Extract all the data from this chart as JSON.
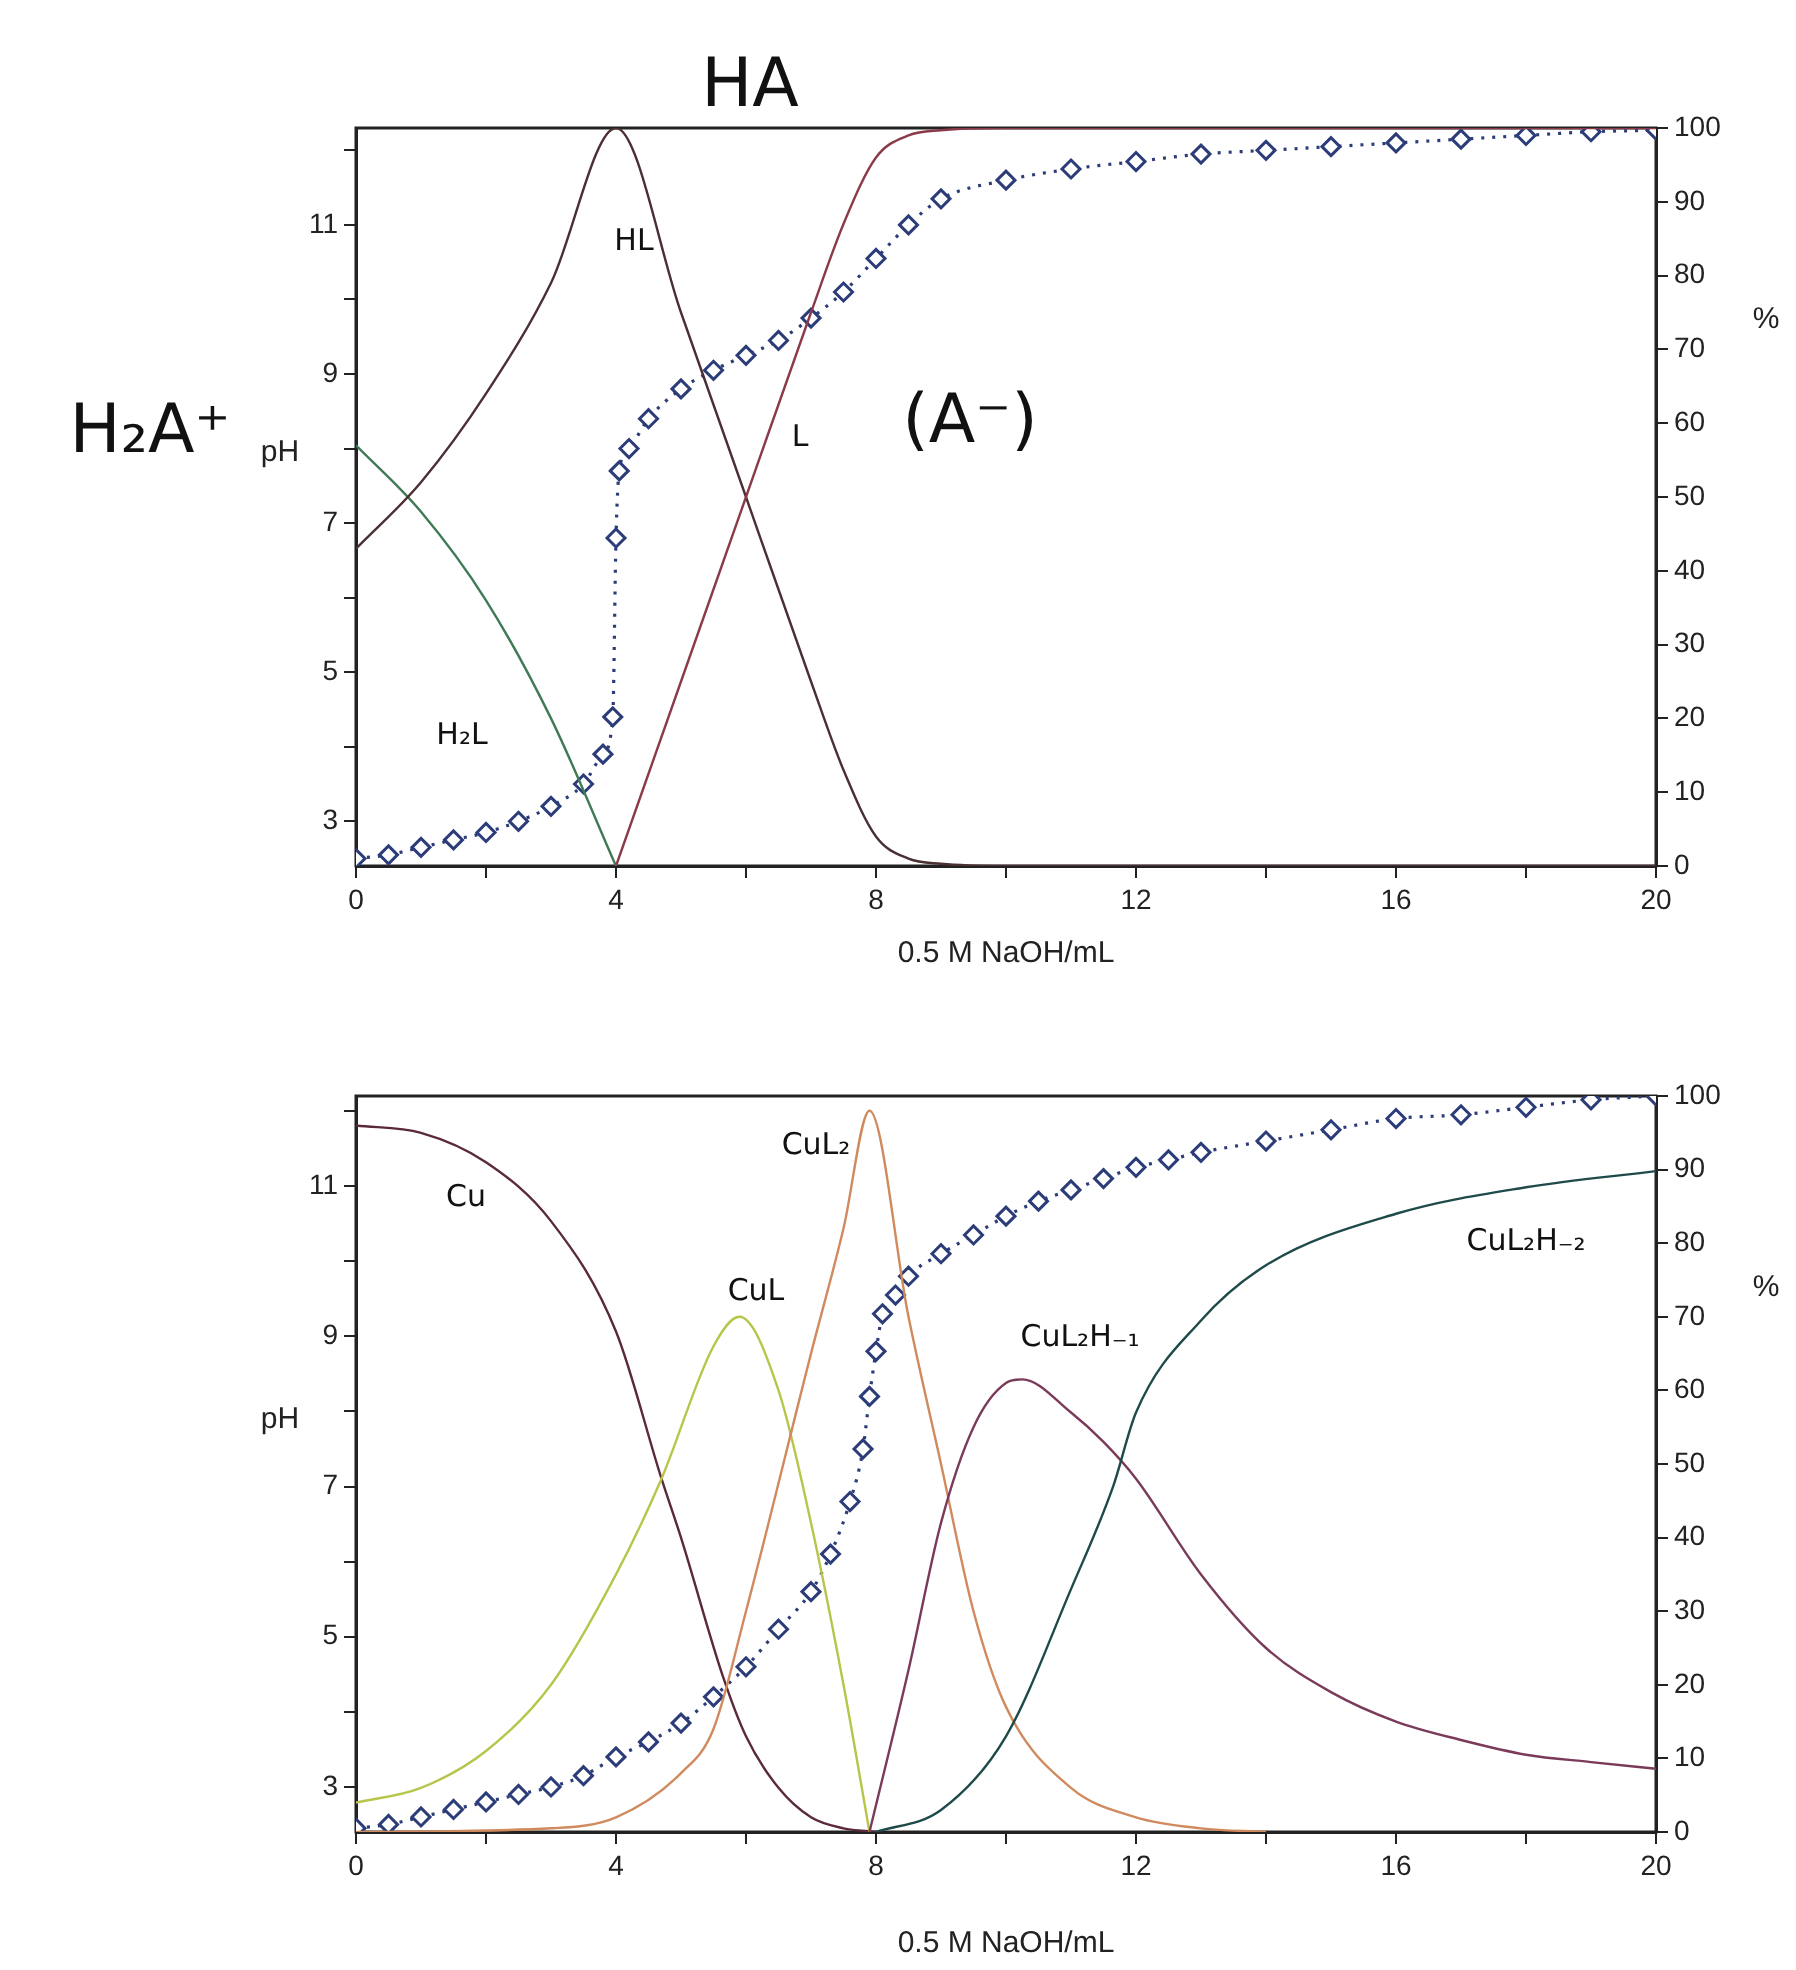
{
  "chart_data": [
    {
      "type": "line",
      "xlabel": "0.5 M NaOH/mL",
      "ylabel": "pH",
      "y2label": "%",
      "grid": false,
      "legend": false,
      "xlim": [
        0,
        20
      ],
      "xticks": [
        0,
        {
          "value": 2,
          "label": null
        },
        4,
        {
          "value": 6,
          "label": null
        },
        8,
        {
          "value": 10,
          "label": null
        },
        12,
        {
          "value": 14,
          "label": null
        },
        16,
        {
          "value": 18,
          "label": null
        },
        20
      ],
      "ylim": [
        2.4,
        12.3
      ],
      "yticks": [
        3,
        {
          "value": 4,
          "label": null
        },
        5,
        {
          "value": 6,
          "label": null
        },
        7,
        {
          "value": 8,
          "label": null
        },
        9,
        {
          "value": 10,
          "label": null
        },
        11,
        {
          "value": 12,
          "label": null
        }
      ],
      "y2lim": [
        0,
        100
      ],
      "y2ticks": [
        0,
        10,
        20,
        30,
        40,
        50,
        60,
        70,
        80,
        90,
        100
      ],
      "series": [
        {
          "color": "#2b3c78",
          "marker": "diamond",
          "line_style": "dotted",
          "x": [
            0,
            0.5,
            1,
            1.5,
            2,
            2.5,
            3,
            3.5,
            3.8,
            3.95,
            4,
            4.05,
            4.2,
            4.5,
            5,
            5.5,
            6,
            6.5,
            7,
            7.5,
            8,
            8.5,
            9,
            10,
            11,
            12,
            13,
            14,
            15,
            16,
            17,
            18,
            19,
            20
          ],
          "values": [
            2.5,
            2.55,
            2.65,
            2.75,
            2.85,
            3.0,
            3.2,
            3.5,
            3.9,
            4.4,
            6.8,
            7.7,
            8.0,
            8.4,
            8.8,
            9.05,
            9.25,
            9.45,
            9.75,
            10.1,
            10.55,
            11.0,
            11.35,
            11.6,
            11.75,
            11.85,
            11.95,
            12.0,
            12.05,
            12.1,
            12.15,
            12.2,
            12.25,
            12.27
          ]
        },
        {
          "axis": "y2",
          "color": "#3f7a55",
          "marker": "none",
          "line_style": "solid",
          "x": [
            0,
            1,
            2,
            3,
            4
          ],
          "values": [
            57,
            48,
            36,
            20,
            0
          ]
        },
        {
          "axis": "y2",
          "color": "#4a2f33",
          "marker": "none",
          "line_style": "solid",
          "x": [
            0,
            1,
            2,
            3,
            4,
            5,
            6,
            7,
            7.5,
            8,
            8.5,
            9,
            10,
            20
          ],
          "values": [
            43,
            52,
            64,
            79,
            100,
            75,
            50,
            25,
            13,
            4,
            1,
            0.3,
            0,
            0
          ]
        },
        {
          "axis": "y2",
          "color": "#8b3a4a",
          "marker": "none",
          "line_style": "solid",
          "x": [
            4,
            5,
            6,
            7,
            7.5,
            8,
            8.5,
            9,
            10,
            20
          ],
          "values": [
            0,
            25,
            50,
            75,
            87,
            96,
            99,
            99.7,
            100,
            100
          ]
        }
      ],
      "annotations": [
        "HL",
        "H₂L",
        "L",
        "HA",
        "H₂A⁺",
        "(A⁻)"
      ]
    },
    {
      "type": "line",
      "xlabel": "0.5 M NaOH/mL",
      "ylabel": "pH",
      "y2label": "%",
      "grid": false,
      "legend": false,
      "xlim": [
        0,
        20
      ],
      "xticks": [
        0,
        {
          "value": 2,
          "label": null
        },
        4,
        {
          "value": 6,
          "label": null
        },
        8,
        {
          "value": 10,
          "label": null
        },
        12,
        {
          "value": 14,
          "label": null
        },
        16,
        {
          "value": 18,
          "label": null
        },
        20
      ],
      "ylim": [
        2.4,
        12.2
      ],
      "yticks": [
        3,
        {
          "value": 4,
          "label": null
        },
        5,
        {
          "value": 6,
          "label": null
        },
        7,
        {
          "value": 8,
          "label": null
        },
        9,
        {
          "value": 10,
          "label": null
        },
        11,
        {
          "value": 12,
          "label": null
        }
      ],
      "y2lim": [
        0,
        100
      ],
      "y2ticks": [
        0,
        10,
        20,
        30,
        40,
        50,
        60,
        70,
        80,
        90,
        100
      ],
      "series": [
        {
          "color": "#2b3c78",
          "marker": "diamond",
          "line_style": "dotted",
          "x": [
            0,
            0.5,
            1,
            1.5,
            2,
            2.5,
            3,
            3.5,
            4,
            4.5,
            5,
            5.5,
            6,
            6.5,
            7,
            7.3,
            7.6,
            7.8,
            7.9,
            8,
            8.1,
            8.3,
            8.5,
            9,
            9.5,
            10,
            10.5,
            11,
            11.5,
            12,
            12.5,
            13,
            14,
            15,
            16,
            17,
            18,
            19,
            20
          ],
          "values": [
            2.45,
            2.5,
            2.6,
            2.7,
            2.8,
            2.9,
            3.0,
            3.15,
            3.4,
            3.6,
            3.85,
            4.2,
            4.6,
            5.1,
            5.6,
            6.1,
            6.8,
            7.5,
            8.2,
            8.8,
            9.3,
            9.55,
            9.8,
            10.1,
            10.35,
            10.6,
            10.8,
            10.95,
            11.1,
            11.25,
            11.35,
            11.45,
            11.6,
            11.75,
            11.9,
            11.95,
            12.05,
            12.15,
            12.2
          ]
        },
        {
          "axis": "y2",
          "color": "#5a2a3a",
          "marker": "none",
          "line_style": "solid",
          "x": [
            0,
            1,
            2,
            3,
            4,
            4.7,
            5,
            5.65,
            6,
            6.5,
            7,
            7.5,
            8
          ],
          "values": [
            96,
            95,
            91,
            83,
            68,
            48,
            40,
            21,
            13,
            6,
            2,
            0.5,
            0
          ]
        },
        {
          "axis": "y2",
          "color": "#b7c64a",
          "marker": "none",
          "line_style": "solid",
          "x": [
            0,
            1,
            2,
            3,
            4,
            4.7,
            5.5,
            5.9,
            6.5,
            7,
            7.5,
            7.9
          ],
          "values": [
            4,
            6,
            11,
            20,
            35,
            48,
            66,
            70,
            60,
            42,
            20,
            0
          ]
        },
        {
          "axis": "y2",
          "color": "#d08a5e",
          "marker": "none",
          "line_style": "solid",
          "x": [
            0,
            3,
            4,
            5,
            5.5,
            6,
            7,
            7.5,
            7.9,
            8.5,
            9,
            9.5,
            10,
            11,
            12,
            13,
            14
          ],
          "values": [
            0,
            0.5,
            2,
            8,
            14,
            30,
            65,
            82,
            98,
            70,
            50,
            30,
            17,
            6,
            2,
            0.5,
            0
          ]
        },
        {
          "axis": "y2",
          "color": "#7a3a5a",
          "marker": "none",
          "line_style": "solid",
          "x": [
            7.9,
            8.5,
            9,
            9.5,
            10,
            10.25,
            11,
            11.5,
            12,
            13,
            14,
            15,
            16,
            17,
            18,
            19,
            20
          ],
          "values": [
            0,
            22,
            42,
            55,
            61,
            61.5,
            57,
            53,
            48,
            35,
            25,
            19,
            15,
            12.5,
            10.5,
            9.5,
            8.6
          ]
        },
        {
          "axis": "y2",
          "color": "#1f4a4a",
          "marker": "none",
          "line_style": "solid",
          "x": [
            8,
            9,
            10,
            11,
            11.65,
            12,
            13,
            14,
            16,
            18,
            20
          ],
          "values": [
            0,
            3,
            13,
            33,
            47,
            57,
            69.5,
            77,
            84,
            87.6,
            89.8
          ]
        }
      ],
      "annotations": [
        "Cu",
        "CuL",
        "CuL₂",
        "CuL₂H₋₁",
        "CuL₂H₋₂"
      ]
    }
  ]
}
